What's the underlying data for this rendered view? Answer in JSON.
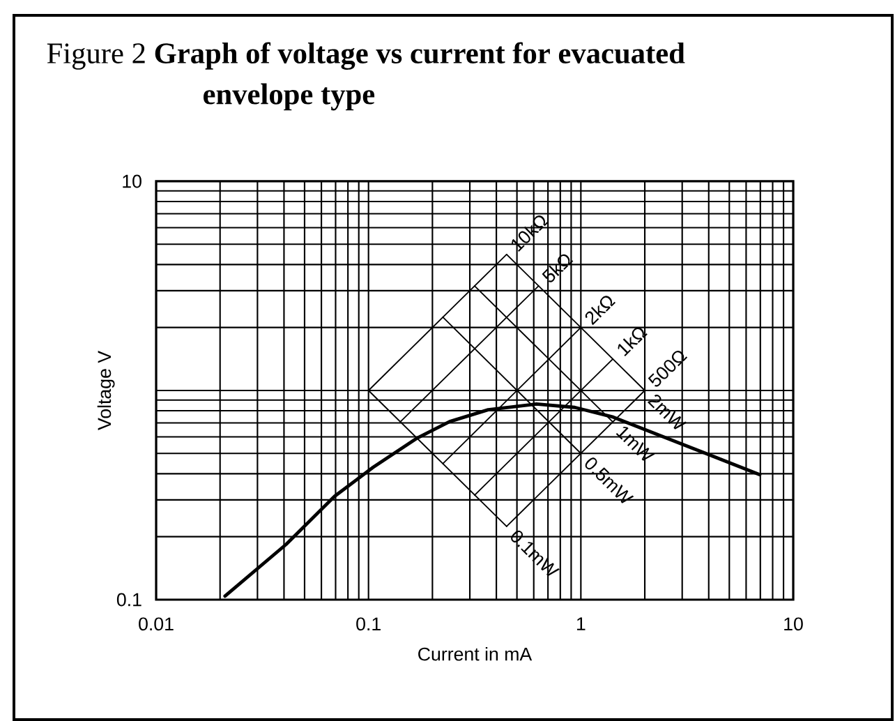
{
  "chart_data": {
    "type": "line",
    "title": "Figure 2 **Graph of voltage vs current for evacuated envelope type**",
    "xlabel": "Current in mA",
    "ylabel": "Voltage V",
    "log": "xy",
    "grid": true,
    "xlim": [
      0.01,
      10
    ],
    "ylim": [
      0.1,
      10
    ],
    "xticks": [
      0.01,
      0.1,
      1,
      10
    ],
    "yticks": [
      0.1,
      {
        "value": 1,
        "label": null
      },
      10
    ],
    "series": [
      {
        "color": "#000000",
        "x": [
          0.0211,
          0.041,
          0.0692,
          0.105,
          0.168,
          0.241,
          0.366,
          0.617,
          0.935,
          1.42,
          2.94,
          6.96
        ],
        "values": [
          0.104,
          0.184,
          0.312,
          0.429,
          0.589,
          0.71,
          0.809,
          0.861,
          0.83,
          0.746,
          0.558,
          0.396
        ]
      },
      {
        "name": "10kΩ",
        "color": "#000000",
        "x": [
          0.1,
          0.447
        ],
        "values": [
          1,
          4.47
        ]
      },
      {
        "name": "5kΩ",
        "color": "#000000",
        "x": [
          0.141,
          0.632
        ],
        "values": [
          0.707,
          3.16
        ]
      },
      {
        "name": "2kΩ",
        "color": "#000000",
        "x": [
          0.224,
          1
        ],
        "values": [
          0.447,
          2
        ]
      },
      {
        "name": "1kΩ",
        "color": "#000000",
        "x": [
          0.316,
          1.414
        ],
        "values": [
          0.316,
          1.414
        ]
      },
      {
        "name": "500Ω",
        "color": "#000000",
        "x": [
          0.447,
          2
        ],
        "values": [
          0.224,
          1
        ]
      },
      {
        "name": "0.1mW",
        "color": "#000000",
        "x": [
          0.1,
          0.447
        ],
        "values": [
          1,
          0.224
        ]
      },
      {
        "name": "0.5mW",
        "color": "#000000",
        "x": [
          0.224,
          1
        ],
        "values": [
          2.24,
          0.5
        ]
      },
      {
        "name": "1mW",
        "color": "#000000",
        "x": [
          0.316,
          1.414
        ],
        "values": [
          3.16,
          0.707
        ]
      },
      {
        "name": "2mW",
        "color": "#000000",
        "x": [
          0.447,
          2
        ],
        "values": [
          4.47,
          1
        ]
      }
    ]
  }
}
